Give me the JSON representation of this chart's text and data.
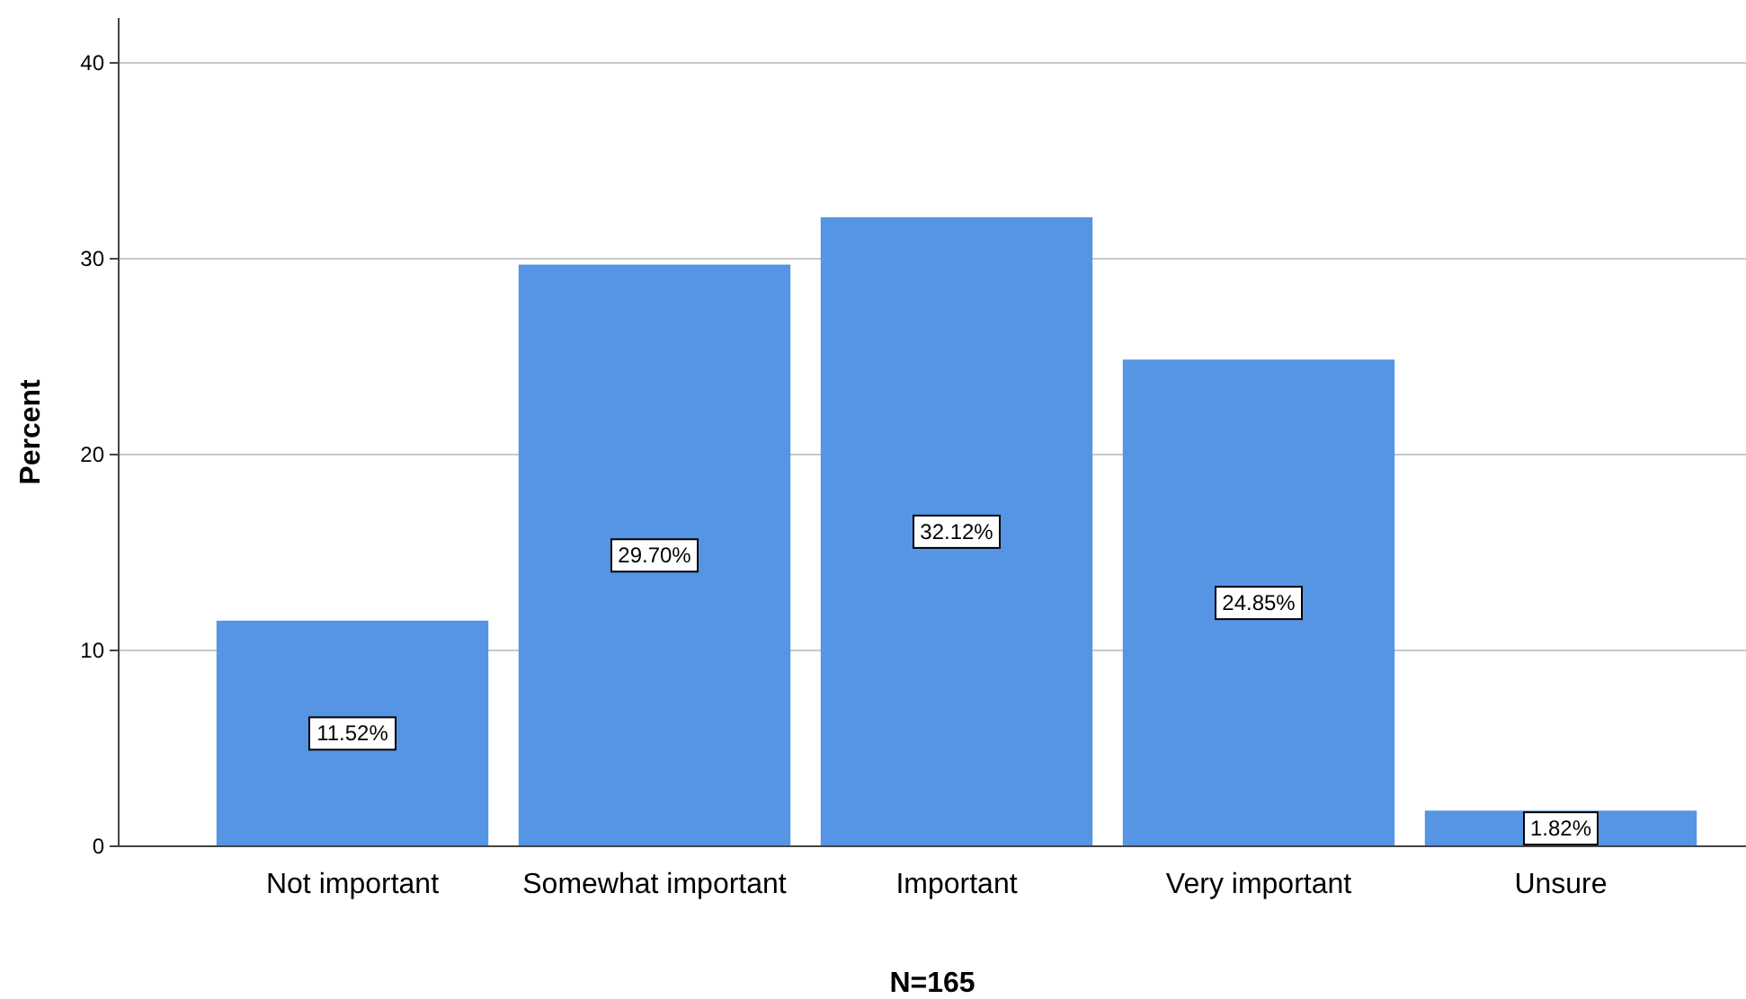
{
  "chart_data": {
    "type": "bar",
    "xlabel": "N=165",
    "ylabel": "Percent",
    "categories": [
      "Not important",
      "Somewhat important",
      "Important",
      "Very important",
      "Unsure"
    ],
    "values": [
      11.52,
      29.7,
      32.12,
      24.85,
      1.82
    ],
    "value_labels": [
      "11.52%",
      "29.70%",
      "32.12%",
      "24.85%",
      "1.82%"
    ],
    "color": "#5595e3",
    "ylim": [
      0,
      40
    ],
    "yticks": [
      0,
      10,
      20,
      30,
      40
    ],
    "grid": "y"
  }
}
